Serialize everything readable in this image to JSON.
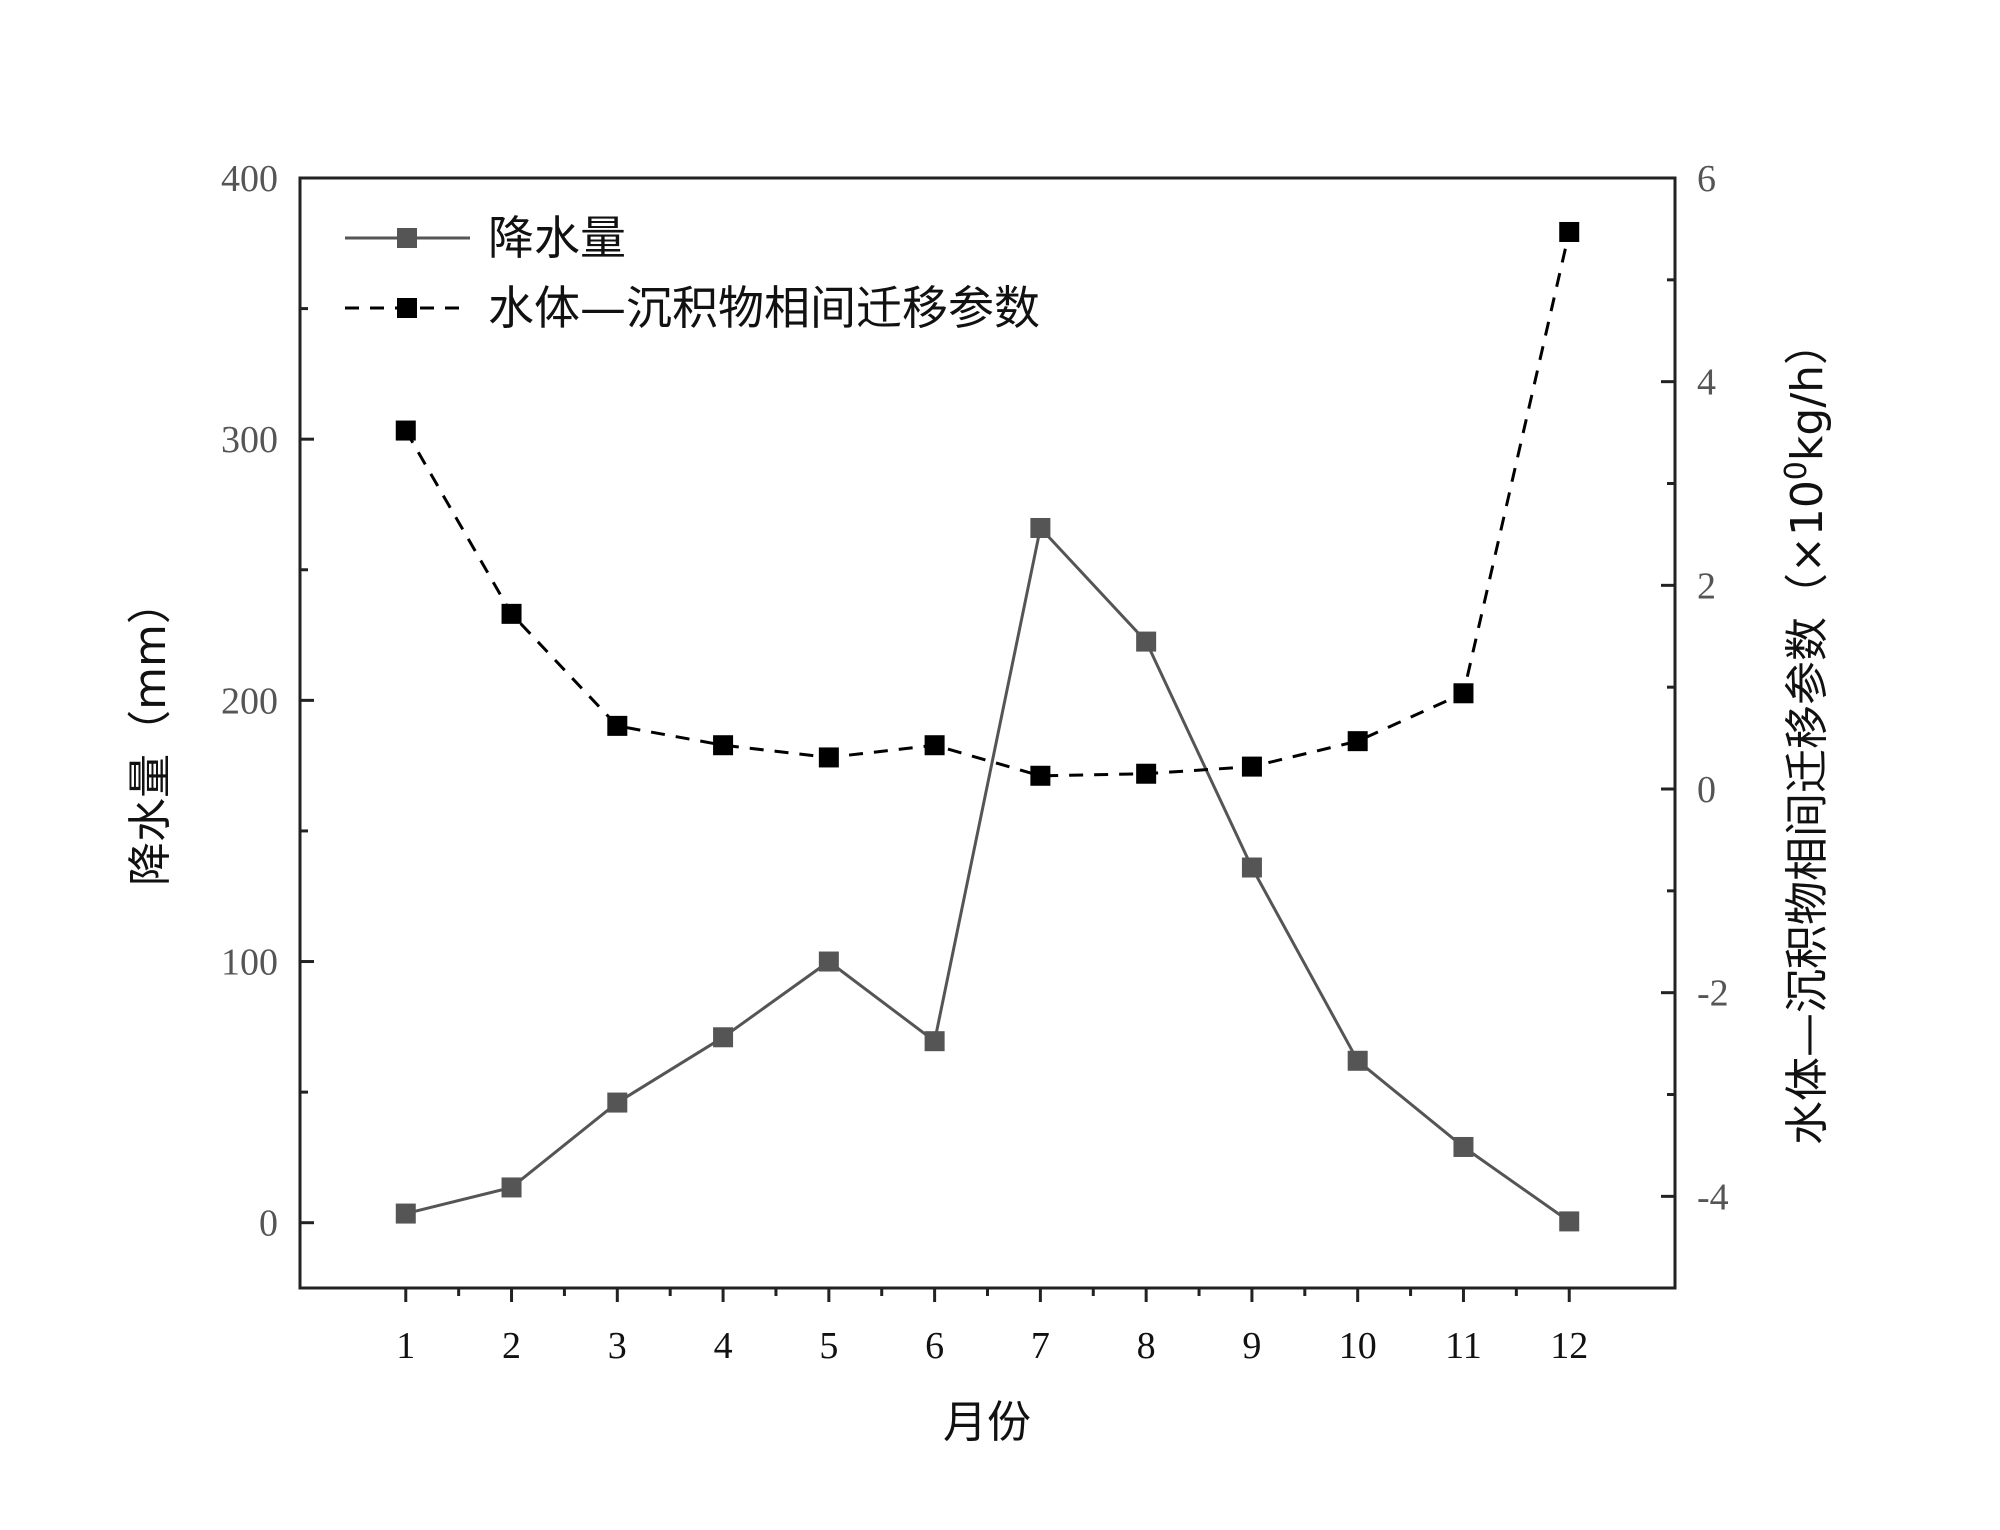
{
  "chart_data": {
    "type": "line",
    "x": [
      1,
      2,
      3,
      4,
      5,
      6,
      7,
      8,
      9,
      10,
      11,
      12
    ],
    "xlabel": "月份",
    "ylabel": "降水量（mm）",
    "y2label_main": "水体—沉积物相间迁移参数（×10",
    "y2label_sup": "0",
    "y2label_tail": "kg/h）",
    "ylim": [
      -25,
      400
    ],
    "y2lim": [
      -4.9,
      6
    ],
    "yticks": [
      0,
      100,
      200,
      300,
      400
    ],
    "y2ticks": [
      -4,
      -2,
      0,
      2,
      4,
      6
    ],
    "grid": false,
    "legend_position": "top-left",
    "series": [
      {
        "name": "降水量",
        "axis": "left",
        "style": "solid",
        "color": "#555555",
        "values": [
          3.5,
          13.5,
          46,
          71,
          100,
          69.5,
          266,
          222.5,
          136,
          62,
          29,
          0.5
        ]
      },
      {
        "name": "水体—沉积物相间迁移参数",
        "axis": "right",
        "style": "dashed",
        "color": "#000000",
        "values": [
          3.52,
          1.72,
          0.62,
          0.43,
          0.31,
          0.43,
          0.13,
          0.15,
          0.22,
          0.47,
          0.94,
          5.47
        ]
      }
    ]
  }
}
